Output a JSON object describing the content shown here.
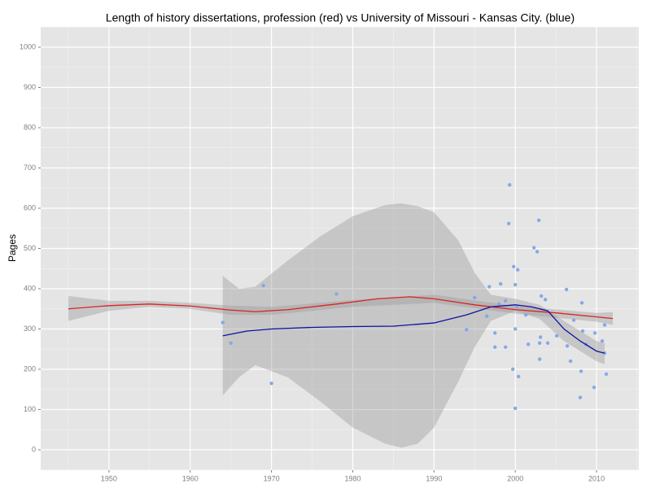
{
  "chart_data": {
    "type": "scatter",
    "title": "Length of history dissertations, profession (red) vs University of Missouri - Kansas City. (blue)",
    "ylabel": "Pages",
    "xlim": [
      1941.6,
      2015.2
    ],
    "ylim": [
      -50.5,
      1050.5
    ],
    "xticks": [
      1950,
      1960,
      1970,
      1980,
      1990,
      2000,
      2010
    ],
    "yticks": [
      0,
      100,
      200,
      300,
      400,
      500,
      600,
      700,
      800,
      900,
      1000
    ],
    "xticks_minor": [
      1945,
      1955,
      1965,
      1975,
      1985,
      1995,
      2005,
      2015
    ],
    "yticks_minor": [
      -50,
      50,
      150,
      250,
      350,
      450,
      550,
      650,
      750,
      850,
      950,
      1050
    ],
    "grid": true,
    "bands": [
      {
        "color": "#999999",
        "x": [
          1964,
          1966,
          1968,
          1972,
          1976,
          1980,
          1984,
          1986,
          1988,
          1990,
          1993,
          1995,
          1997,
          2000,
          2003,
          2006,
          2010,
          2011
        ],
        "lower": [
          135,
          180,
          210,
          180,
          120,
          55,
          15,
          5,
          15,
          55,
          170,
          255,
          320,
          345,
          325,
          270,
          220,
          212
        ],
        "upper": [
          432,
          400,
          405,
          470,
          530,
          580,
          608,
          612,
          605,
          590,
          520,
          440,
          385,
          375,
          360,
          320,
          270,
          265
        ]
      },
      {
        "color": "#999999",
        "x": [
          1945,
          1950,
          1955,
          1960,
          1965,
          1970,
          1980,
          1990,
          2000,
          2010,
          2012
        ],
        "lower": [
          320,
          345,
          355,
          350,
          335,
          335,
          355,
          365,
          338,
          318,
          310
        ],
        "upper": [
          382,
          370,
          370,
          365,
          358,
          355,
          372,
          385,
          357,
          340,
          342
        ]
      }
    ],
    "lines": [
      {
        "color": "#dd2222",
        "x": [
          1945,
          1950,
          1955,
          1960,
          1965,
          1968,
          1972,
          1978,
          1983,
          1987,
          1990,
          1995,
          2000,
          2005,
          2010,
          2012
        ],
        "values": [
          350,
          358,
          362,
          357,
          347,
          343,
          348,
          362,
          375,
          380,
          375,
          360,
          348,
          340,
          330,
          326
        ]
      },
      {
        "color": "#1010a0",
        "x": [
          1964,
          1967,
          1970,
          1975,
          1980,
          1985,
          1990,
          1994,
          1997,
          2000,
          2002,
          2004,
          2006,
          2008,
          2010,
          2011
        ],
        "values": [
          283,
          295,
          300,
          304,
          306,
          307,
          315,
          335,
          355,
          360,
          355,
          345,
          300,
          270,
          245,
          240
        ]
      }
    ],
    "points": {
      "color": "#86a8e8",
      "x": [
        1964,
        1965,
        1969,
        1970,
        1978,
        1994,
        1995,
        1996.5,
        1996.8,
        1997.5,
        1997.5,
        1998,
        1998.2,
        1998.8,
        1998.8,
        1999.2,
        1999.3,
        1999.7,
        1999.8,
        2000,
        2000,
        2000,
        2000.2,
        2000.3,
        2000.4,
        2001.3,
        2001.6,
        2002.3,
        2002.7,
        2002.9,
        2003,
        2003,
        2003.1,
        2003.2,
        2003.7,
        2004,
        2005.1,
        2006.3,
        2006.4,
        2006.8,
        2007.2,
        2008,
        2008.1,
        2008.2,
        2008.3,
        2008.7,
        2009.7,
        2009.8,
        2010.7,
        2011,
        2011,
        2011.2
      ],
      "values": [
        316,
        265,
        408,
        165,
        387,
        298,
        378,
        332,
        405,
        255,
        290,
        362,
        412,
        255,
        370,
        562,
        658,
        200,
        455,
        300,
        103,
        410,
        355,
        447,
        182,
        335,
        262,
        502,
        492,
        570,
        265,
        225,
        280,
        382,
        373,
        265,
        283,
        398,
        258,
        220,
        322,
        130,
        195,
        365,
        295,
        262,
        155,
        290,
        270,
        240,
        310,
        188
      ]
    }
  }
}
